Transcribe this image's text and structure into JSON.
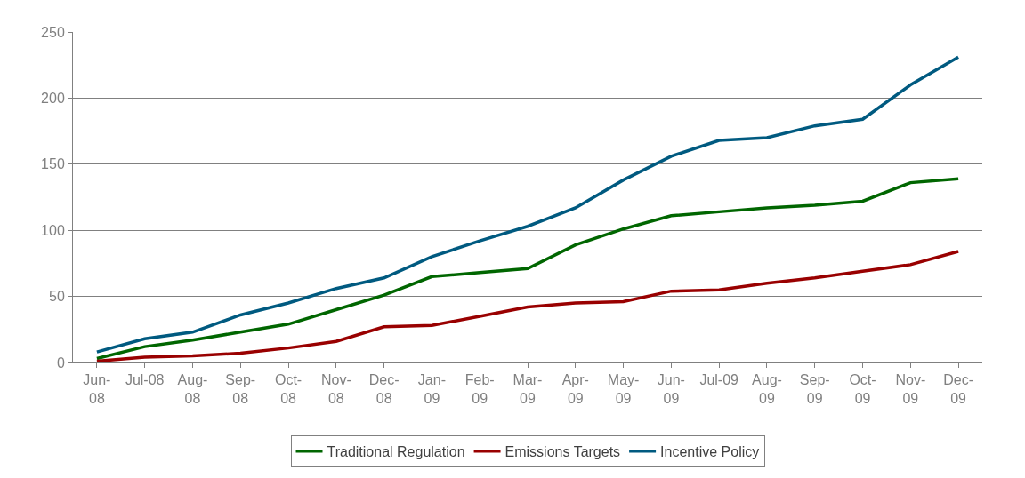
{
  "chart_data": {
    "type": "line",
    "categories": [
      "Jun-\n08",
      "Jul-08",
      "Aug-\n08",
      "Sep-\n08",
      "Oct-\n08",
      "Nov-\n08",
      "Dec-\n08",
      "Jan-\n09",
      "Feb-\n09",
      "Mar-\n09",
      "Apr-\n09",
      "May-\n09",
      "Jun-\n09",
      "Jul-09",
      "Aug-\n09",
      "Sep-\n09",
      "Oct-\n09",
      "Nov-\n09",
      "Dec-\n09"
    ],
    "series": [
      {
        "name": "Traditional Regulation",
        "color": "#006600",
        "values": [
          3,
          12,
          17,
          23,
          29,
          40,
          51,
          65,
          68,
          71,
          89,
          101,
          111,
          114,
          117,
          119,
          122,
          136,
          139
        ]
      },
      {
        "name": "Emissions Targets",
        "color": "#990000",
        "values": [
          1,
          4,
          5,
          7,
          11,
          16,
          27,
          28,
          35,
          42,
          45,
          46,
          54,
          55,
          60,
          64,
          69,
          74,
          84
        ]
      },
      {
        "name": "Incentive Policy",
        "color": "#005a80",
        "values": [
          8,
          18,
          23,
          36,
          45,
          56,
          64,
          80,
          92,
          103,
          117,
          138,
          156,
          168,
          170,
          179,
          184,
          210,
          231
        ]
      }
    ],
    "ylim": [
      0,
      250
    ],
    "yticks": [
      0,
      50,
      100,
      150,
      200,
      250
    ],
    "grid": "y",
    "legend": "bottom",
    "marker": "none",
    "line_style": "solid"
  }
}
